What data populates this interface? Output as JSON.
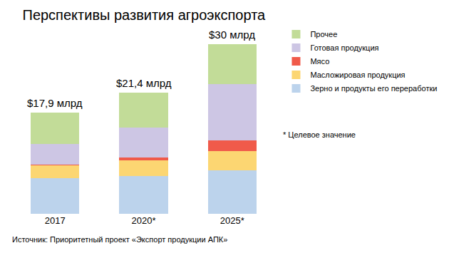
{
  "chart_data": {
    "type": "bar",
    "title": "Перспективы развития агроэкспорта",
    "categories": [
      "2017",
      "2020*",
      "2025*"
    ],
    "stacked": true,
    "series": [
      {
        "name": "Зерно и продукты его переработки",
        "color": "#bcd3ec",
        "values": [
          6.3,
          6.7,
          7.7
        ]
      },
      {
        "name": "Масложировая продукция",
        "color": "#fcd672",
        "values": [
          2.3,
          2.8,
          3.4
        ]
      },
      {
        "name": "Мясо",
        "color": "#f05a4a",
        "values": [
          0.1,
          0.4,
          1.9
        ]
      },
      {
        "name": "Готовая продукция",
        "color": "#cdc6e4",
        "values": [
          3.6,
          5.4,
          9.9
        ]
      },
      {
        "name": "Прочее",
        "color": "#c2dc98",
        "values": [
          5.6,
          6.1,
          7.1
        ]
      }
    ],
    "totals": [
      17.9,
      21.4,
      30
    ],
    "total_labels": [
      "$17,9 млрд",
      "$21,4 млрд",
      "$30 млрд"
    ],
    "ylim": [
      0,
      30
    ],
    "tick_labels": "x",
    "grid": false,
    "legend": "right",
    "note": "* Целевое значение",
    "source": "Источник: Приоритетный проект «Экспорт продукции АПК»"
  }
}
